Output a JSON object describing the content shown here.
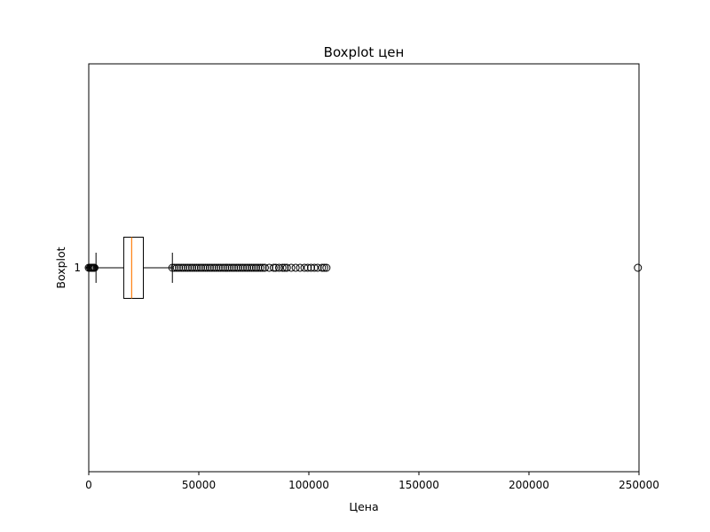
{
  "chart_data": {
    "type": "boxplot",
    "orientation": "horizontal",
    "title": "Boxplot цен",
    "xlabel": "Цена",
    "ylabel": "Boxplot",
    "xlim": [
      0,
      250000
    ],
    "x_ticks": [
      0,
      50000,
      100000,
      150000,
      200000,
      250000
    ],
    "y_ticks": [
      "1"
    ],
    "grid": false,
    "colors": {
      "box": "#000000",
      "median": "#ff7f0e",
      "flier": "#000000"
    },
    "series": [
      {
        "category": "1",
        "whisker_low": 3300,
        "q1": 15900,
        "median": 19500,
        "q3": 24800,
        "whisker_high": 38000,
        "fliers": [
          0,
          600,
          1000,
          1400,
          1800,
          2200,
          2600,
          38000,
          39000,
          40000,
          41000,
          42000,
          43000,
          44000,
          45000,
          46000,
          47000,
          48000,
          49000,
          50000,
          51000,
          52000,
          53000,
          54000,
          55000,
          56000,
          57000,
          58000,
          59000,
          60000,
          61000,
          62000,
          63000,
          64000,
          65000,
          66000,
          67000,
          68000,
          69000,
          70000,
          71000,
          72000,
          73000,
          74000,
          75000,
          76000,
          77000,
          78000,
          79000,
          80000,
          82000,
          84000,
          85000,
          86500,
          88000,
          89000,
          90000,
          92000,
          94000,
          96000,
          98000,
          99500,
          101000,
          102500,
          104000,
          106000,
          107000,
          108000,
          249500
        ]
      }
    ]
  }
}
